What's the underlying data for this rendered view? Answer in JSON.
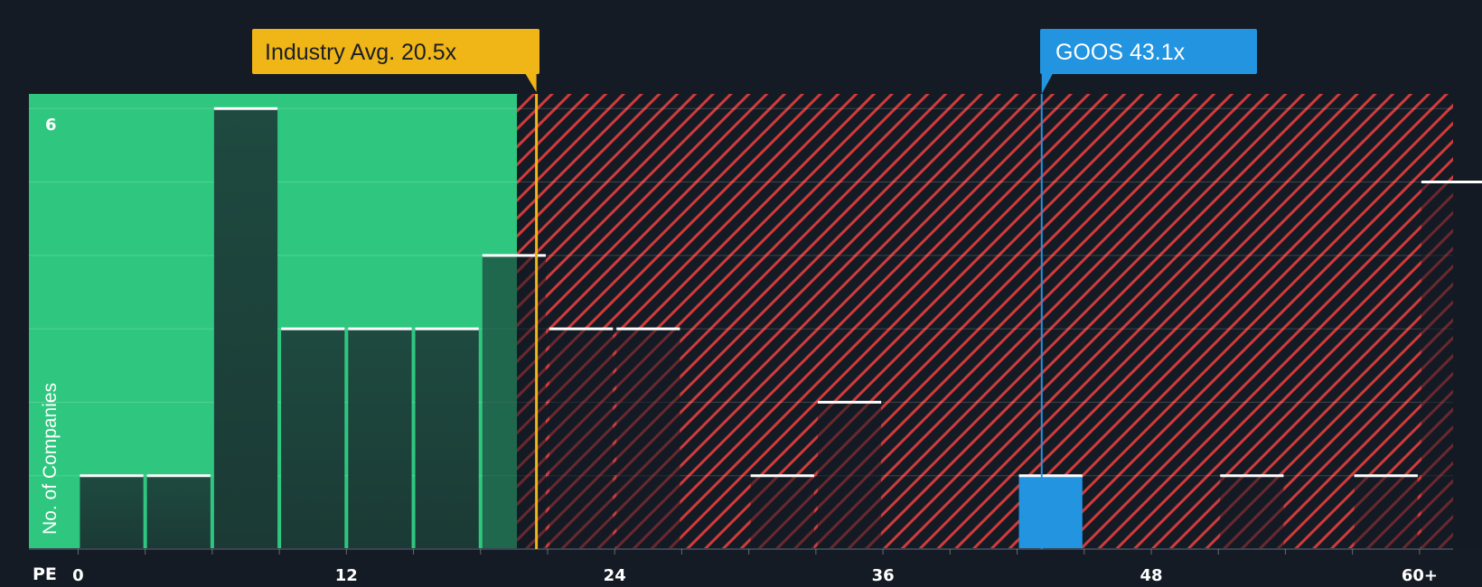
{
  "colors": {
    "background": "#151b24",
    "fair_zone": "#2fc77f",
    "overvalued_zone": "#d03b3b",
    "bar_fill": "#1e4a40",
    "bar_top": "#ffffff",
    "industry_avg": "#f0b516",
    "company": "#2394e0",
    "text": "#ffffff"
  },
  "chart_data": {
    "type": "bar",
    "xlabel": "PE",
    "ylabel": "No. of Companies",
    "x_tick_labels": [
      "0",
      "12",
      "24",
      "36",
      "48",
      "60+"
    ],
    "x_tick_values": [
      0,
      12,
      24,
      36,
      48,
      60
    ],
    "y_tick_labels": [
      "6"
    ],
    "y_tick_values": [
      6
    ],
    "xlim": [
      -2.2,
      61.5
    ],
    "ylim": [
      0,
      6.2
    ],
    "bin_width": 3,
    "bins": [
      {
        "start": 0,
        "count": 1
      },
      {
        "start": 3,
        "count": 1
      },
      {
        "start": 6,
        "count": 6
      },
      {
        "start": 9,
        "count": 3
      },
      {
        "start": 12,
        "count": 3
      },
      {
        "start": 15,
        "count": 3
      },
      {
        "start": 18,
        "count": 4
      },
      {
        "start": 21,
        "count": 3
      },
      {
        "start": 24,
        "count": 3
      },
      {
        "start": 30,
        "count": 1
      },
      {
        "start": 33,
        "count": 2
      },
      {
        "start": 42,
        "count": 1,
        "highlight": true
      },
      {
        "start": 51,
        "count": 1
      },
      {
        "start": 57,
        "count": 1
      },
      {
        "start": 60,
        "count": 5
      }
    ],
    "industry_avg": {
      "label": "Industry Avg. 20.5x",
      "value": 20.5
    },
    "company": {
      "label": "GOOS 43.1x",
      "value": 43.1
    },
    "grid": true
  }
}
